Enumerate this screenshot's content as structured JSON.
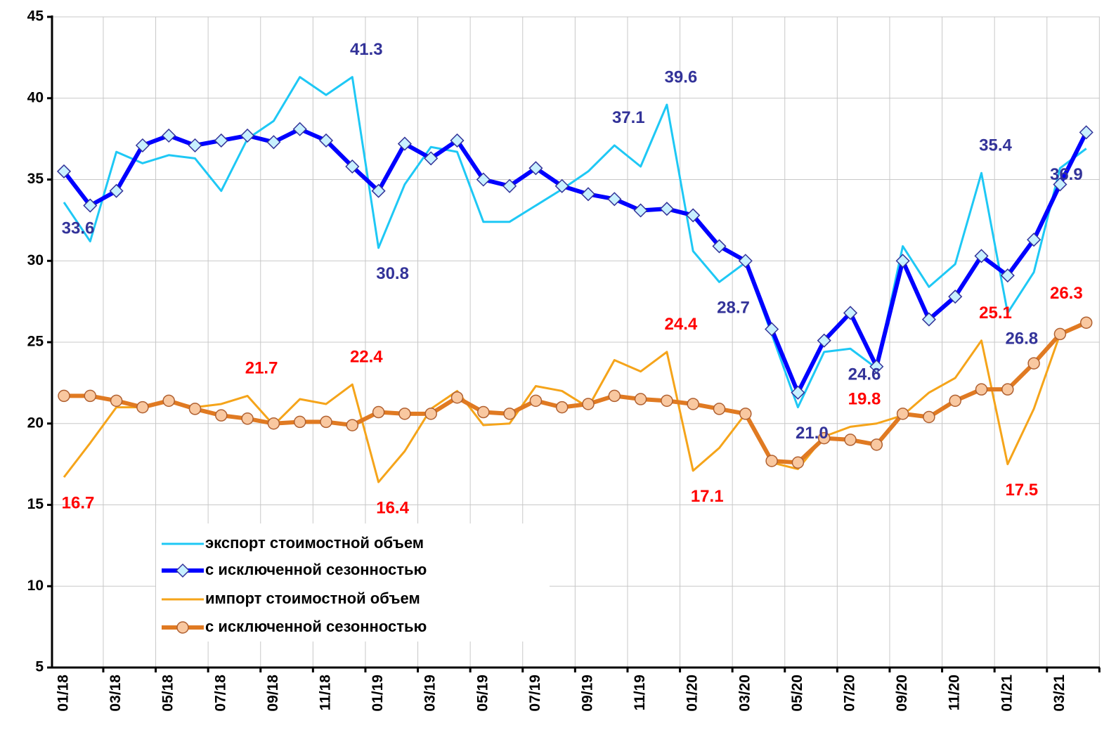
{
  "chart_data": {
    "type": "line",
    "categories": [
      "01/18",
      null,
      "03/18",
      null,
      "05/18",
      null,
      "07/18",
      null,
      "09/18",
      null,
      "11/18",
      null,
      "01/19",
      null,
      "03/19",
      null,
      "05/19",
      null,
      "07/19",
      null,
      "09/19",
      null,
      "11/19",
      null,
      "01/20",
      null,
      "03/20",
      null,
      "05/20",
      null,
      "07/20",
      null,
      "09/20",
      null,
      "11/20",
      null,
      "01/21",
      null,
      "03/21",
      null
    ],
    "ylim": [
      5,
      45
    ],
    "yticks": [
      5,
      10,
      15,
      20,
      25,
      30,
      35,
      40,
      45
    ],
    "grid": true,
    "series": [
      {
        "name": "экспорт стоимостной объем",
        "color": "#1ec8f5",
        "linewidth": 3,
        "label_color": "#333399",
        "values": [
          33.6,
          31.2,
          36.7,
          36.0,
          36.5,
          36.3,
          34.3,
          37.5,
          38.6,
          41.3,
          40.2,
          41.3,
          30.8,
          34.7,
          37.0,
          36.7,
          32.4,
          32.4,
          33.4,
          34.4,
          35.5,
          37.1,
          35.8,
          39.6,
          30.6,
          28.7,
          29.9,
          25.5,
          21.0,
          24.4,
          24.6,
          23.4,
          30.9,
          28.4,
          29.8,
          35.4,
          26.8,
          29.3,
          35.7,
          36.9
        ],
        "value_labels": [
          "33.6",
          null,
          null,
          null,
          null,
          null,
          null,
          null,
          null,
          null,
          null,
          "41.3",
          "30.8",
          null,
          null,
          null,
          null,
          null,
          null,
          null,
          null,
          "37.1",
          null,
          "39.6",
          null,
          "28.7",
          null,
          null,
          "21.0",
          null,
          "24.6",
          null,
          null,
          null,
          null,
          "35.4",
          "26.8",
          null,
          null,
          "36.9"
        ]
      },
      {
        "name": "с исключенной сезонностью",
        "color": "#0000ff",
        "linewidth": 6,
        "marker": "diamond",
        "marker_fill": "#c8f0ff",
        "marker_stroke": "#333399",
        "values": [
          35.5,
          33.4,
          34.3,
          37.1,
          37.7,
          37.1,
          37.4,
          37.7,
          37.3,
          38.1,
          37.4,
          35.8,
          34.3,
          37.2,
          36.3,
          37.4,
          35.0,
          34.6,
          35.7,
          34.6,
          34.1,
          33.8,
          33.1,
          33.2,
          32.8,
          30.9,
          30.0,
          25.8,
          21.9,
          25.1,
          26.8,
          23.5,
          30.0,
          26.4,
          27.8,
          30.3,
          29.1,
          31.3,
          34.7,
          37.9
        ]
      },
      {
        "name": "импорт стоимостной объем",
        "color": "#f5a41a",
        "linewidth": 3,
        "label_color": "#ff0000",
        "values": [
          16.7,
          18.8,
          21.0,
          21.0,
          21.4,
          21.0,
          21.2,
          21.7,
          19.9,
          21.5,
          21.2,
          22.4,
          16.4,
          18.3,
          20.9,
          22.0,
          19.9,
          20.0,
          22.3,
          22.0,
          21.0,
          23.9,
          23.2,
          24.4,
          17.1,
          18.5,
          20.6,
          17.6,
          17.2,
          19.2,
          19.8,
          20.0,
          20.5,
          21.9,
          22.8,
          25.1,
          17.5,
          20.9,
          25.5,
          26.3
        ],
        "value_labels": [
          "16.7",
          null,
          null,
          null,
          null,
          null,
          null,
          "21.7",
          null,
          null,
          null,
          "22.4",
          "16.4",
          null,
          null,
          null,
          null,
          null,
          null,
          null,
          null,
          null,
          null,
          "24.4",
          "17.1",
          null,
          null,
          null,
          null,
          null,
          "19.8",
          null,
          null,
          null,
          null,
          "25.1",
          "17.5",
          null,
          null,
          "26.3"
        ]
      },
      {
        "name": "с исключенной сезонностью",
        "color": "#e07a22",
        "linewidth": 6,
        "marker": "circle",
        "marker_fill": "#f9c8a0",
        "marker_stroke": "#b06030",
        "values": [
          21.7,
          21.7,
          21.4,
          21.0,
          21.4,
          20.9,
          20.5,
          20.3,
          20.0,
          20.1,
          20.1,
          19.9,
          20.7,
          20.6,
          20.6,
          21.6,
          20.7,
          20.6,
          21.4,
          21.0,
          21.2,
          21.7,
          21.5,
          21.4,
          21.2,
          20.9,
          20.6,
          17.7,
          17.6,
          19.1,
          19.0,
          18.7,
          20.6,
          20.4,
          21.4,
          22.1,
          22.1,
          23.7,
          25.5,
          26.2
        ]
      }
    ]
  }
}
